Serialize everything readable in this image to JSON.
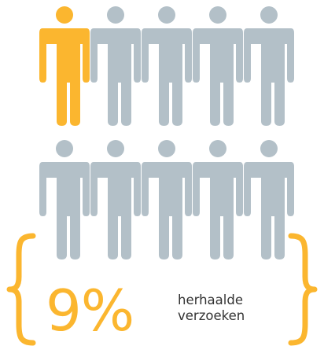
{
  "infographic": {
    "total_people": 10,
    "highlighted_people": 1,
    "fraction_highlighted": 0.1,
    "person_icon": "person-icon",
    "bracket_icon": "curly-brace-icon",
    "colors": {
      "highlight": "#FBB62F",
      "muted": "#B3C0C8",
      "text": "#333333"
    },
    "stat": {
      "value": "9%",
      "label_line1": "herhaalde",
      "label_line2": "verzoeken"
    }
  }
}
